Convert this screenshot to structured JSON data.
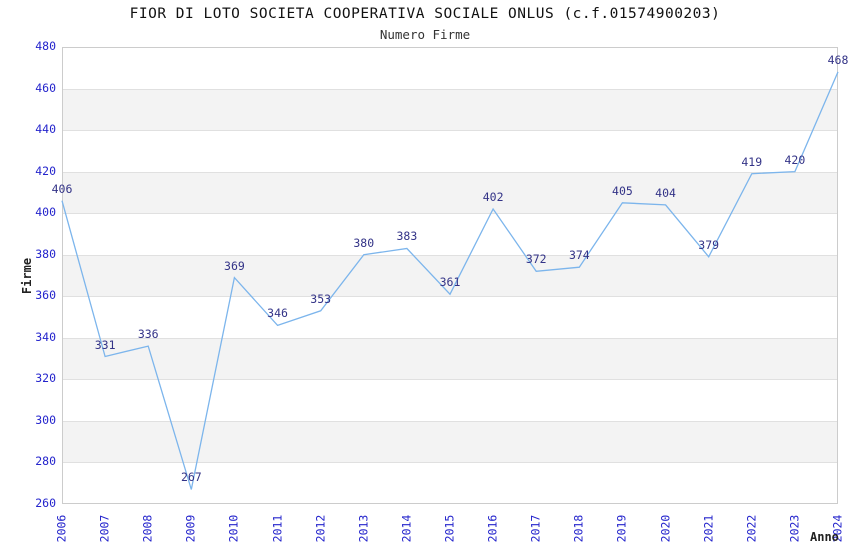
{
  "header": {
    "title": "FIOR DI LOTO SOCIETA COOPERATIVA SOCIALE ONLUS (c.f.01574900203)",
    "subtitle": "Numero Firme"
  },
  "chart_data": {
    "type": "line",
    "title": "FIOR DI LOTO SOCIETA COOPERATIVA SOCIALE ONLUS (c.f.01574900203)",
    "subtitle": "Numero Firme",
    "xlabel": "Anno",
    "ylabel": "Firme",
    "categories": [
      "2006",
      "2007",
      "2008",
      "2009",
      "2010",
      "2011",
      "2012",
      "2013",
      "2014",
      "2015",
      "2016",
      "2017",
      "2018",
      "2019",
      "2020",
      "2021",
      "2022",
      "2023",
      "2024"
    ],
    "values": [
      406,
      331,
      336,
      267,
      369,
      346,
      353,
      380,
      383,
      361,
      402,
      372,
      374,
      405,
      404,
      379,
      419,
      420,
      468
    ],
    "ylim": [
      260,
      480
    ],
    "ytick_step": 20,
    "grid": "horizontal",
    "alternate_bands": true,
    "legend": "none",
    "markers": "none",
    "colors": {
      "line": "#7cb5ec",
      "point_label": "#333387",
      "tick_label": "#2424cc",
      "axis_title": "#222222",
      "title": "#111111",
      "subtitle": "#333333",
      "band": "#f3f3f3",
      "grid_line": "#e0e0e0",
      "plot_border": "#cccccc",
      "background": "#ffffff"
    }
  }
}
